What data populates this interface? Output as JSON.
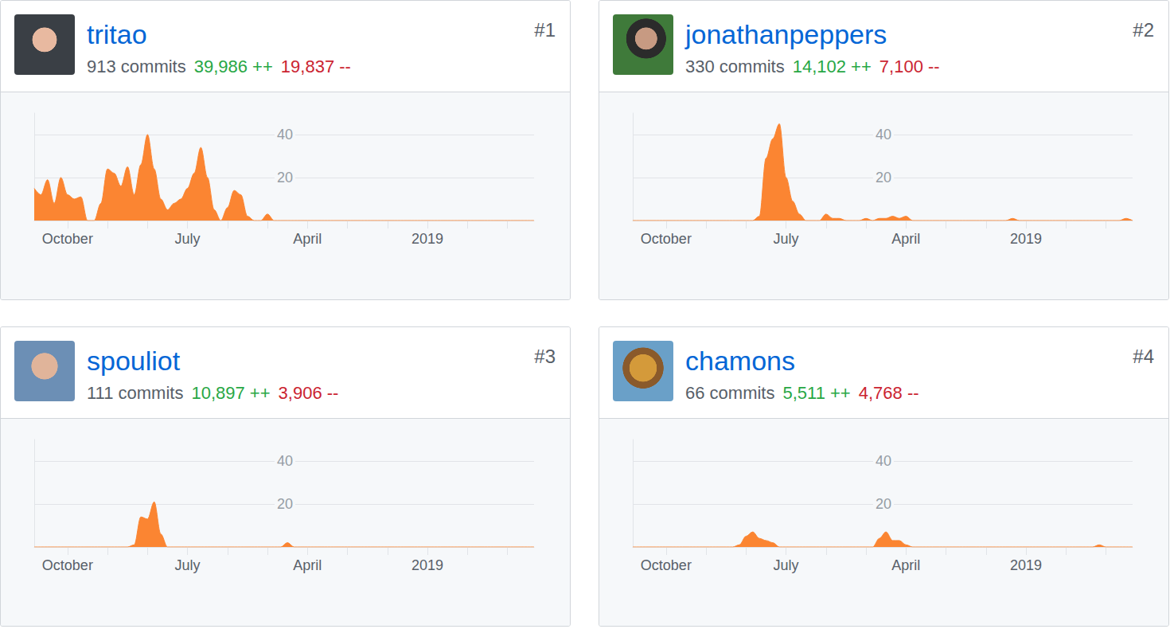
{
  "chart_data": [
    {
      "type": "area",
      "title": "tritao",
      "rank": "#1",
      "commits": "913 commits",
      "additions": "39,986 ++",
      "deletions": "19,837 --",
      "color": "#fb8532",
      "grid": true,
      "ylim": [
        0,
        50
      ],
      "yticks": [
        20,
        40
      ],
      "categories": [
        null,
        null,
        null,
        null,
        null,
        "October",
        null,
        null,
        null,
        null,
        null,
        null,
        null,
        null,
        null,
        null,
        null,
        null,
        null,
        null,
        null,
        null,
        null,
        "July",
        null,
        null,
        null,
        null,
        null,
        null,
        null,
        null,
        null,
        null,
        null,
        null,
        null,
        null,
        null,
        null,
        null,
        "April",
        null,
        null,
        null,
        null,
        null,
        null,
        null,
        null,
        null,
        null,
        null,
        null,
        null,
        null,
        null,
        null,
        null,
        "2019",
        null,
        null,
        null,
        null,
        null,
        null,
        null,
        null,
        null,
        null,
        null,
        null,
        null,
        null,
        null,
        null
      ],
      "values": [
        15,
        12,
        19,
        8,
        20,
        12,
        10,
        11,
        0,
        0,
        8,
        24,
        22,
        16,
        25,
        12,
        26,
        40,
        24,
        10,
        5,
        8,
        10,
        15,
        22,
        34,
        20,
        5,
        0,
        6,
        14,
        12,
        2,
        0,
        0,
        3,
        0,
        0,
        0,
        0,
        0,
        0,
        0,
        0,
        0,
        0,
        0,
        0,
        0,
        0,
        0,
        0,
        0,
        0,
        0,
        0,
        0,
        0,
        0,
        0,
        0,
        0,
        0,
        0,
        0,
        0,
        0,
        0,
        0,
        0,
        0,
        0,
        0,
        0,
        0,
        0
      ]
    },
    {
      "type": "area",
      "title": "jonathanpeppers",
      "rank": "#2",
      "commits": "330 commits",
      "additions": "14,102 ++",
      "deletions": "7,100 --",
      "color": "#fb8532",
      "grid": true,
      "ylim": [
        0,
        50
      ],
      "yticks": [
        20,
        40
      ],
      "categories": [
        null,
        null,
        null,
        null,
        null,
        "October",
        null,
        null,
        null,
        null,
        null,
        null,
        null,
        null,
        null,
        null,
        null,
        null,
        null,
        null,
        null,
        null,
        null,
        "July",
        null,
        null,
        null,
        null,
        null,
        null,
        null,
        null,
        null,
        null,
        null,
        null,
        null,
        null,
        null,
        null,
        null,
        "April",
        null,
        null,
        null,
        null,
        null,
        null,
        null,
        null,
        null,
        null,
        null,
        null,
        null,
        null,
        null,
        null,
        null,
        "2019",
        null,
        null,
        null,
        null,
        null,
        null,
        null,
        null,
        null,
        null,
        null,
        null,
        null,
        null,
        null,
        null
      ],
      "values": [
        0,
        0,
        0,
        0,
        0,
        0,
        0,
        0,
        0,
        0,
        0,
        0,
        0,
        0,
        0,
        0,
        0,
        0,
        0,
        2,
        29,
        38,
        45,
        20,
        9,
        3,
        0,
        0,
        0,
        3,
        1,
        1,
        0,
        0,
        0,
        1,
        0,
        1,
        1,
        2,
        1,
        2,
        0,
        0,
        0,
        0,
        0,
        0,
        0,
        0,
        0,
        0,
        0,
        0,
        0,
        0,
        0,
        1,
        0,
        0,
        0,
        0,
        0,
        0,
        0,
        0,
        0,
        0,
        0,
        0,
        0,
        0,
        0,
        0,
        1,
        0
      ]
    },
    {
      "type": "area",
      "title": "spouliot",
      "rank": "#3",
      "commits": "111 commits",
      "additions": "10,897 ++",
      "deletions": "3,906 --",
      "color": "#fb8532",
      "grid": true,
      "ylim": [
        0,
        50
      ],
      "yticks": [
        20,
        40
      ],
      "categories": [
        null,
        null,
        null,
        null,
        null,
        "October",
        null,
        null,
        null,
        null,
        null,
        null,
        null,
        null,
        null,
        null,
        null,
        null,
        null,
        null,
        null,
        null,
        null,
        "July",
        null,
        null,
        null,
        null,
        null,
        null,
        null,
        null,
        null,
        null,
        null,
        null,
        null,
        null,
        null,
        null,
        null,
        "April",
        null,
        null,
        null,
        null,
        null,
        null,
        null,
        null,
        null,
        null,
        null,
        null,
        null,
        null,
        null,
        null,
        null,
        "2019",
        null,
        null,
        null,
        null,
        null,
        null,
        null,
        null,
        null,
        null,
        null,
        null,
        null,
        null,
        null,
        null
      ],
      "values": [
        0,
        0,
        0,
        0,
        0,
        0,
        0,
        0,
        0,
        0,
        0,
        0,
        0,
        0,
        0,
        1,
        14,
        13,
        21,
        6,
        0,
        0,
        0,
        0,
        0,
        0,
        0,
        0,
        0,
        0,
        0,
        0,
        0,
        0,
        0,
        0,
        0,
        0,
        2,
        0,
        0,
        0,
        0,
        0,
        0,
        0,
        0,
        0,
        0,
        0,
        0,
        0,
        0,
        0,
        0,
        0,
        0,
        0,
        0,
        0,
        0,
        0,
        0,
        0,
        0,
        0,
        0,
        0,
        0,
        0,
        0,
        0,
        0,
        0,
        0,
        0
      ]
    },
    {
      "type": "area",
      "title": "chamons",
      "rank": "#4",
      "commits": "66 commits",
      "additions": "5,511 ++",
      "deletions": "4,768 --",
      "color": "#fb8532",
      "grid": true,
      "ylim": [
        0,
        50
      ],
      "yticks": [
        20,
        40
      ],
      "categories": [
        null,
        null,
        null,
        null,
        null,
        "October",
        null,
        null,
        null,
        null,
        null,
        null,
        null,
        null,
        null,
        null,
        null,
        null,
        null,
        null,
        null,
        null,
        null,
        "July",
        null,
        null,
        null,
        null,
        null,
        null,
        null,
        null,
        null,
        null,
        null,
        null,
        null,
        null,
        null,
        null,
        null,
        "April",
        null,
        null,
        null,
        null,
        null,
        null,
        null,
        null,
        null,
        null,
        null,
        null,
        null,
        null,
        null,
        null,
        null,
        "2019",
        null,
        null,
        null,
        null,
        null,
        null,
        null,
        null,
        null,
        null,
        null,
        null,
        null,
        null,
        null,
        null
      ],
      "values": [
        0,
        0,
        0,
        0,
        0,
        0,
        0,
        0,
        0,
        0,
        0,
        0,
        0,
        0,
        0,
        0,
        1,
        5,
        7,
        4,
        3,
        2,
        0,
        0,
        0,
        0,
        0,
        0,
        0,
        0,
        0,
        0,
        0,
        0,
        0,
        0,
        0,
        4,
        7,
        3,
        3,
        1,
        0,
        0,
        0,
        0,
        0,
        0,
        0,
        0,
        0,
        0,
        0,
        0,
        0,
        0,
        0,
        0,
        0,
        0,
        0,
        0,
        0,
        0,
        0,
        0,
        0,
        0,
        0,
        0,
        1,
        0,
        0,
        0,
        0,
        0
      ]
    }
  ]
}
